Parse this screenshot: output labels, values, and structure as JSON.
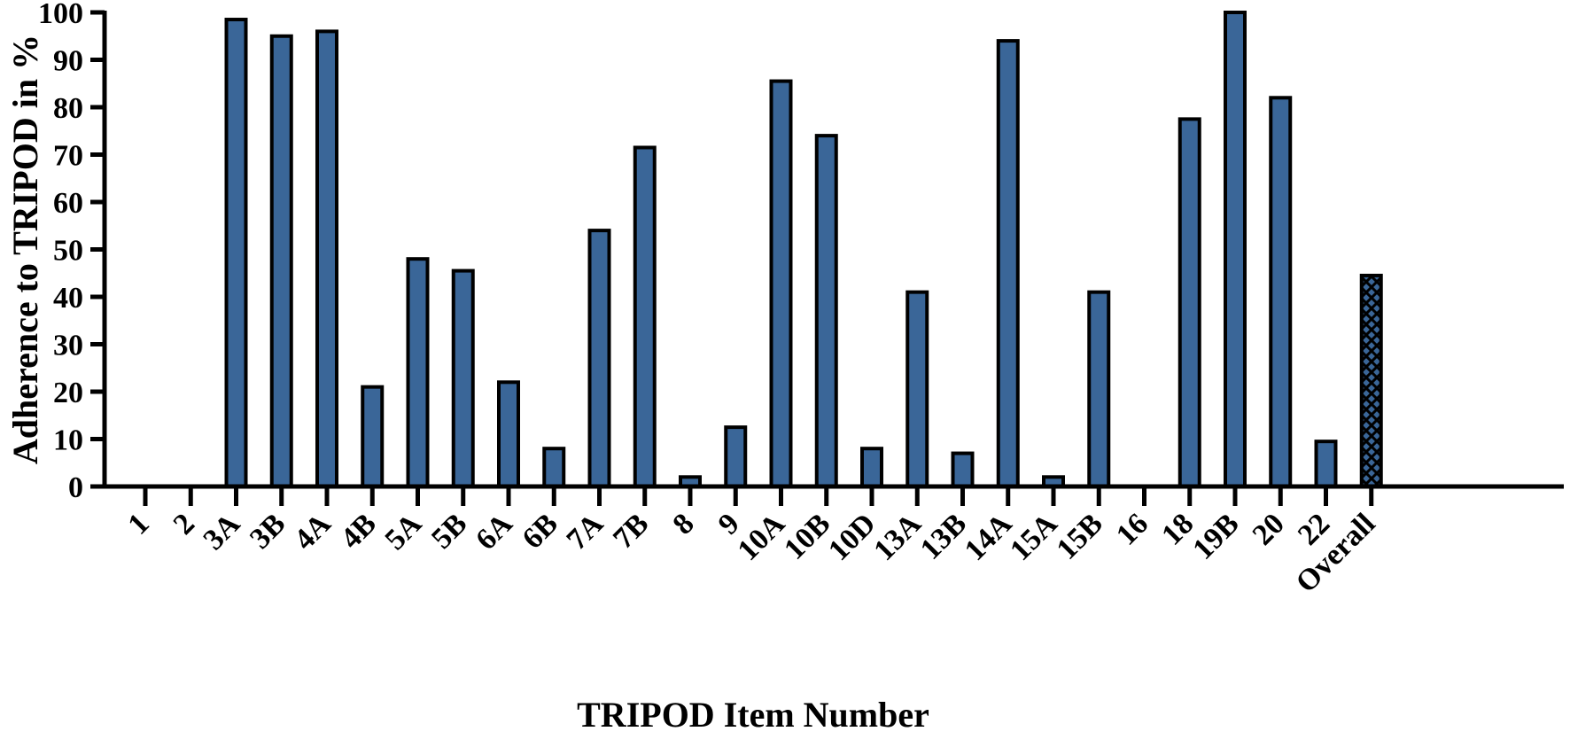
{
  "chart_data": {
    "type": "bar",
    "xlabel": "TRIPOD Item Number",
    "ylabel": "Adherence to TRIPOD in %",
    "ylim": [
      0,
      100
    ],
    "yticks": [
      0,
      10,
      20,
      30,
      40,
      50,
      60,
      70,
      80,
      90,
      100
    ],
    "grid": false,
    "legend": "none",
    "categories": [
      "1",
      "2",
      "3A",
      "3B",
      "4A",
      "4B",
      "5A",
      "5B",
      "6A",
      "6B",
      "7A",
      "7B",
      "8",
      "9",
      "10A",
      "10B",
      "10D",
      "13A",
      "13B",
      "14A",
      "15A",
      "15B",
      "16",
      "18",
      "19B",
      "20",
      "22",
      "Overall"
    ],
    "values": [
      0,
      0,
      98.5,
      95,
      96,
      21,
      48,
      45.5,
      22,
      8,
      54,
      71.5,
      2,
      12.5,
      85.5,
      74,
      8,
      41,
      7,
      94,
      2,
      41,
      0,
      77.5,
      100,
      82,
      9.5,
      44.5
    ],
    "colors": {
      "bar_fill": "#3a6698",
      "bar_stroke": "#000000",
      "overall_pattern": "crosshatch"
    }
  }
}
